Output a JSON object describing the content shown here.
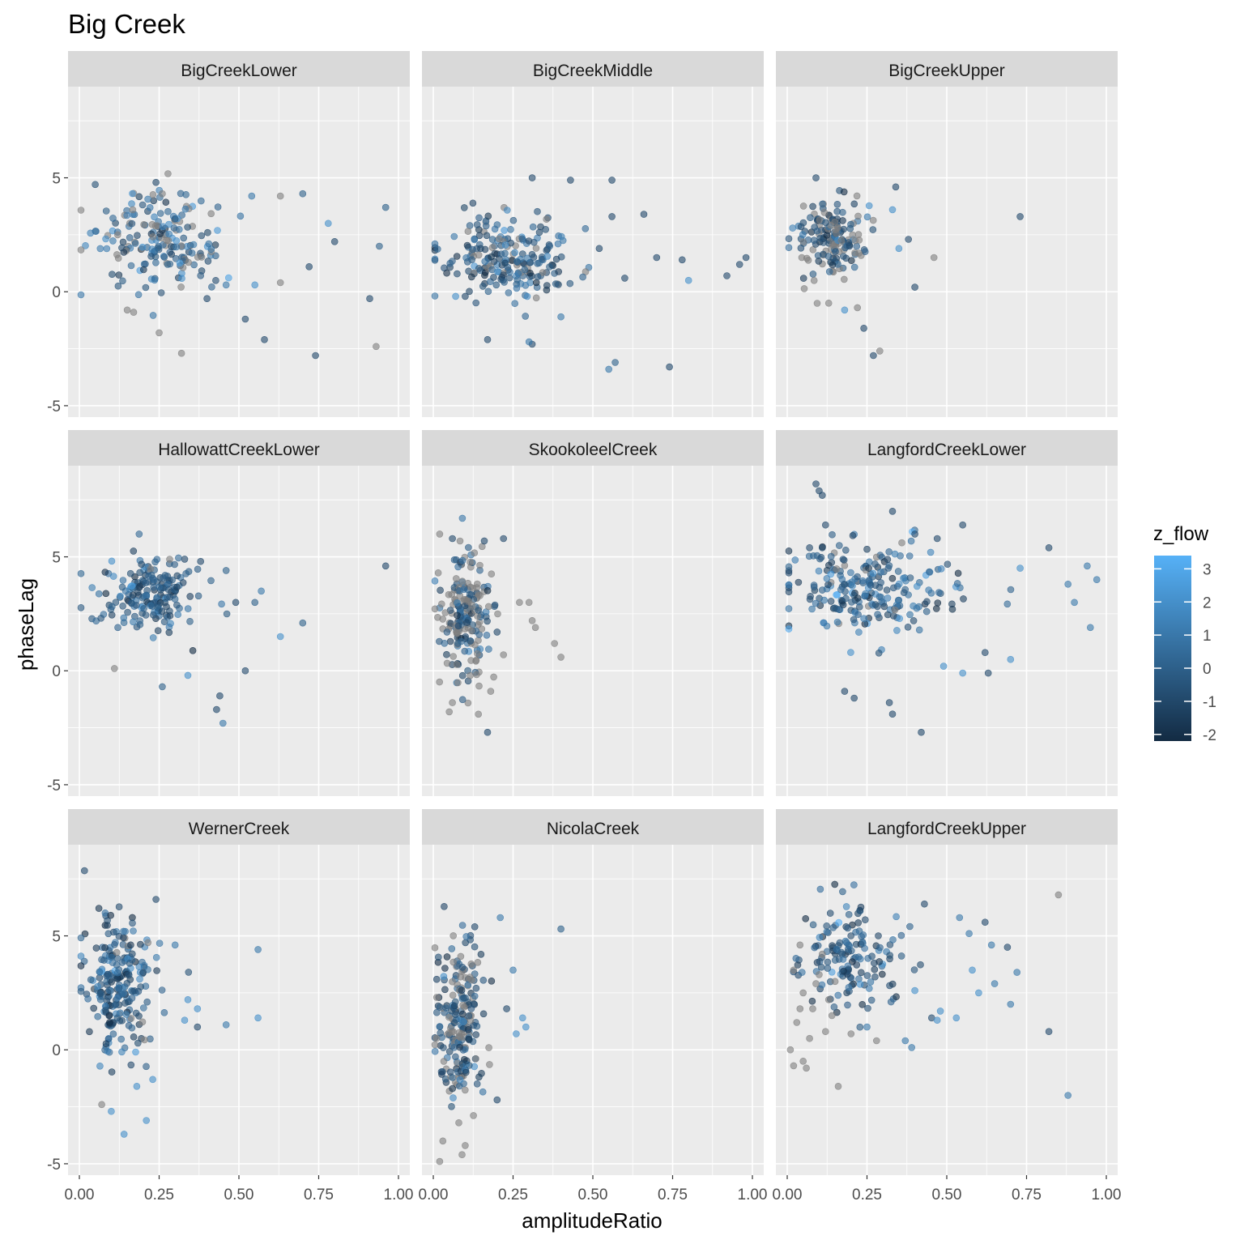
{
  "chart_data": {
    "type": "scatter",
    "title": "Big Creek",
    "xlabel": "amplitudeRatio",
    "ylabel": "phaseLag",
    "xlim": [
      0.0,
      1.0
    ],
    "ylim": [
      -5.5,
      9.0
    ],
    "x_ticks": [
      0,
      0.25,
      0.5,
      0.75,
      1
    ],
    "x_tick_labels": [
      "0.00",
      "0.25",
      "0.50",
      "0.75",
      "1.00"
    ],
    "y_ticks": [
      -5,
      0,
      5
    ],
    "y_tick_labels": [
      "-5",
      "0",
      "5"
    ],
    "grid": true,
    "legend": {
      "title": "z_flow",
      "placement": "right",
      "ticks": [
        3,
        2,
        1,
        0,
        -1,
        -2
      ],
      "tick_labels": [
        "3",
        "2",
        "1",
        "0",
        "-1",
        "-2"
      ],
      "range": [
        -2.2,
        3.4
      ],
      "low_color": "#132B43",
      "high_color": "#56B1F7",
      "na_color": "#7F7F7F"
    },
    "colors": {
      "panel_bg": "#EBEBEB",
      "strip_bg": "#D9D9D9",
      "grid": "#FFFFFF",
      "text": "#1A1A1A",
      "tick_text": "#4D4D4D"
    },
    "panels": [
      {
        "name": "BigCreekLower",
        "cloud": {
          "cx": 0.26,
          "cy": 2.3,
          "sx": 0.09,
          "sy": 1.0,
          "n": 190,
          "zmean": 0.3,
          "zsd": 1.1,
          "na": 0.22
        },
        "points": [
          [
            0.24,
            4.8,
            -1
          ],
          [
            0.32,
            -2.7,
            null
          ],
          [
            0.74,
            -2.8,
            -1
          ],
          [
            0.93,
            -2.4,
            null
          ],
          [
            0.91,
            -0.3,
            -1
          ],
          [
            0.94,
            2.0,
            0
          ],
          [
            0.96,
            3.7,
            0
          ],
          [
            0.7,
            4.3,
            0
          ],
          [
            0.63,
            4.2,
            null
          ],
          [
            0.54,
            4.2,
            1
          ],
          [
            0.8,
            2.2,
            -1
          ],
          [
            0.78,
            3.0,
            2
          ],
          [
            0.58,
            -2.1,
            -1
          ],
          [
            0.26,
            4.3,
            null
          ],
          [
            0.15,
            -0.8,
            null
          ],
          [
            0.17,
            -0.9,
            null
          ],
          [
            0.4,
            -0.3,
            -1
          ],
          [
            0.46,
            0.3,
            1
          ],
          [
            0.55,
            0.3,
            2
          ],
          [
            0.72,
            1.1,
            -1
          ],
          [
            0.12,
            2.5,
            null
          ],
          [
            0.63,
            0.4,
            null
          ],
          [
            0.25,
            -1.8,
            null
          ],
          [
            0.52,
            -1.2,
            -1
          ]
        ]
      },
      {
        "name": "BigCreekMiddle",
        "cloud": {
          "cx": 0.22,
          "cy": 1.4,
          "sx": 0.09,
          "sy": 0.9,
          "n": 210,
          "zmean": -0.2,
          "zsd": 1.1,
          "na": 0.12
        },
        "points": [
          [
            0.31,
            5.0,
            -1
          ],
          [
            0.56,
            4.9,
            -1
          ],
          [
            0.43,
            4.9,
            -1
          ],
          [
            0.55,
            -3.4,
            1
          ],
          [
            0.57,
            -3.1,
            0
          ],
          [
            0.74,
            -3.3,
            -1
          ],
          [
            0.17,
            -2.1,
            -1
          ],
          [
            0.31,
            -2.3,
            -1
          ],
          [
            0.3,
            -2.2,
            1
          ],
          [
            0.98,
            1.5,
            -1
          ],
          [
            0.96,
            1.2,
            -1
          ],
          [
            0.92,
            0.7,
            -1
          ],
          [
            0.8,
            0.5,
            2
          ],
          [
            0.78,
            1.4,
            -1
          ],
          [
            0.66,
            3.4,
            -1
          ],
          [
            0.56,
            3.3,
            -1
          ],
          [
            0.7,
            1.5,
            -1
          ],
          [
            0.6,
            0.6,
            -1
          ],
          [
            0.07,
            -0.2,
            2
          ],
          [
            0.1,
            -0.2,
            -1
          ],
          [
            0.4,
            -1.1,
            1
          ],
          [
            0.52,
            1.9,
            -1
          ]
        ]
      },
      {
        "name": "BigCreekUpper",
        "cloud": {
          "cx": 0.14,
          "cy": 2.4,
          "sx": 0.05,
          "sy": 0.9,
          "n": 160,
          "zmean": -0.4,
          "zsd": 1.0,
          "na": 0.3
        },
        "points": [
          [
            0.09,
            5.0,
            -1
          ],
          [
            0.73,
            3.3,
            -1
          ],
          [
            0.46,
            1.5,
            null
          ],
          [
            0.34,
            4.6,
            -1
          ],
          [
            0.33,
            3.6,
            2
          ],
          [
            0.27,
            -2.8,
            -1
          ],
          [
            0.29,
            -2.6,
            null
          ],
          [
            0.24,
            -1.6,
            -1
          ],
          [
            0.4,
            0.2,
            -1
          ],
          [
            0.38,
            2.3,
            -1
          ],
          [
            0.35,
            1.9,
            2
          ],
          [
            0.13,
            -0.5,
            null
          ],
          [
            0.18,
            -0.8,
            2
          ],
          [
            0.22,
            -0.7,
            null
          ]
        ]
      },
      {
        "name": "HallowattCreekLower",
        "cloud": {
          "cx": 0.22,
          "cy": 3.4,
          "sx": 0.07,
          "sy": 0.8,
          "n": 180,
          "zmean": -0.2,
          "zsd": 1.0,
          "na": 0.02
        },
        "points": [
          [
            0.96,
            4.6,
            -1
          ],
          [
            0.7,
            2.1,
            0
          ],
          [
            0.63,
            1.5,
            2
          ],
          [
            0.52,
            0.0,
            -1
          ],
          [
            0.45,
            -2.3,
            1
          ],
          [
            0.43,
            -1.7,
            -1
          ],
          [
            0.44,
            -1.1,
            -1
          ],
          [
            0.11,
            0.1,
            null
          ],
          [
            0.26,
            -0.7,
            0
          ],
          [
            0.55,
            3.0,
            0
          ],
          [
            0.57,
            3.5,
            1
          ],
          [
            0.33,
            4.9,
            -1
          ],
          [
            0.38,
            4.8,
            -1
          ],
          [
            0.46,
            4.4,
            0
          ],
          [
            0.49,
            3.0,
            -1
          ],
          [
            0.34,
            -0.2,
            2
          ]
        ]
      },
      {
        "name": "SkookoleelCreek",
        "cloud": {
          "cx": 0.1,
          "cy": 2.3,
          "sx": 0.035,
          "sy": 1.4,
          "n": 200,
          "zmean": -0.5,
          "zsd": 0.9,
          "na": 0.45
        },
        "points": [
          [
            0.02,
            6.0,
            null
          ],
          [
            0.06,
            5.8,
            -1
          ],
          [
            0.22,
            5.8,
            -1
          ],
          [
            0.16,
            5.7,
            -1
          ],
          [
            0.38,
            1.2,
            null
          ],
          [
            0.4,
            0.6,
            null
          ],
          [
            0.3,
            3.0,
            null
          ],
          [
            0.31,
            2.2,
            null
          ],
          [
            0.32,
            1.9,
            null
          ],
          [
            0.27,
            3.0,
            null
          ],
          [
            0.17,
            -2.7,
            -1
          ],
          [
            0.05,
            -1.8,
            null
          ],
          [
            0.06,
            -1.4,
            null
          ],
          [
            0.18,
            -0.9,
            null
          ],
          [
            0.22,
            0.7,
            null
          ],
          [
            0.2,
            1.7,
            -1
          ]
        ]
      },
      {
        "name": "LangfordCreekLower",
        "cloud": {
          "cx": 0.25,
          "cy": 3.6,
          "sx": 0.12,
          "sy": 1.0,
          "n": 230,
          "zmean": 0.0,
          "zsd": 1.2,
          "na": 0.04
        },
        "points": [
          [
            0.09,
            8.2,
            -1
          ],
          [
            0.1,
            7.9,
            -1
          ],
          [
            0.11,
            7.7,
            -1
          ],
          [
            0.12,
            6.4,
            -1
          ],
          [
            0.33,
            7.0,
            -1
          ],
          [
            0.55,
            6.4,
            -1
          ],
          [
            0.4,
            6.0,
            -1
          ],
          [
            0.47,
            5.8,
            -1
          ],
          [
            0.18,
            -0.9,
            -1
          ],
          [
            0.21,
            -1.2,
            -1
          ],
          [
            0.32,
            -1.4,
            -1
          ],
          [
            0.33,
            -1.9,
            -1
          ],
          [
            0.42,
            -2.7,
            -1
          ],
          [
            0.94,
            4.6,
            1
          ],
          [
            0.97,
            4.0,
            1
          ],
          [
            0.95,
            1.9,
            1
          ],
          [
            0.88,
            3.8,
            1
          ],
          [
            0.9,
            3.0,
            1
          ],
          [
            0.82,
            5.4,
            -1
          ],
          [
            0.73,
            4.5,
            2
          ],
          [
            0.62,
            0.8,
            -1
          ],
          [
            0.63,
            -0.1,
            -1
          ],
          [
            0.49,
            0.2,
            2
          ],
          [
            0.55,
            -0.1,
            2
          ],
          [
            0.7,
            0.5,
            2
          ],
          [
            0.07,
            5.4,
            -1
          ],
          [
            0.11,
            5.4,
            -1
          ]
        ]
      },
      {
        "name": "WernerCreek",
        "cloud": {
          "cx": 0.12,
          "cy": 2.9,
          "sx": 0.05,
          "sy": 1.5,
          "n": 230,
          "zmean": 0.0,
          "zsd": 1.2,
          "na": 0.04
        },
        "points": [
          [
            0.24,
            6.6,
            -1
          ],
          [
            0.56,
            4.4,
            1
          ],
          [
            0.56,
            1.4,
            2
          ],
          [
            0.46,
            1.1,
            1
          ],
          [
            0.37,
            1.8,
            2
          ],
          [
            0.37,
            1.0,
            -1
          ],
          [
            0.3,
            4.6,
            1
          ],
          [
            0.14,
            -3.7,
            2
          ],
          [
            0.21,
            -3.1,
            2
          ],
          [
            0.1,
            -2.7,
            2
          ],
          [
            0.07,
            -2.4,
            null
          ],
          [
            0.18,
            -1.6,
            2
          ],
          [
            0.23,
            -1.3,
            2
          ],
          [
            0.34,
            2.2,
            2
          ],
          [
            0.33,
            1.3,
            2
          ]
        ]
      },
      {
        "name": "NicolaCreek",
        "cloud": {
          "cx": 0.08,
          "cy": 1.4,
          "sx": 0.035,
          "sy": 1.8,
          "n": 220,
          "zmean": -0.3,
          "zsd": 1.0,
          "na": 0.3
        },
        "points": [
          [
            0.4,
            5.3,
            0
          ],
          [
            0.21,
            5.8,
            1
          ],
          [
            0.13,
            5.4,
            -1
          ],
          [
            0.02,
            -4.9,
            null
          ],
          [
            0.03,
            -4.0,
            null
          ],
          [
            0.09,
            -4.6,
            null
          ],
          [
            0.1,
            -4.2,
            null
          ],
          [
            0.08,
            -3.2,
            null
          ],
          [
            0.26,
            0.7,
            2
          ],
          [
            0.29,
            1.0,
            2
          ],
          [
            0.25,
            3.5,
            1
          ],
          [
            0.23,
            1.8,
            -1
          ],
          [
            0.2,
            -2.2,
            -1
          ],
          [
            0.28,
            1.4,
            2
          ]
        ]
      },
      {
        "name": "LangfordCreekUpper",
        "cloud": {
          "cx": 0.2,
          "cy": 4.2,
          "sx": 0.08,
          "sy": 1.1,
          "n": 150,
          "zmean": -0.4,
          "zsd": 1.1,
          "na": 0.0
        },
        "points": [
          [
            0.85,
            6.8,
            null
          ],
          [
            0.88,
            -2.0,
            1
          ],
          [
            0.82,
            0.8,
            -1
          ],
          [
            0.7,
            2.0,
            1
          ],
          [
            0.72,
            3.4,
            1
          ],
          [
            0.69,
            4.5,
            -1
          ],
          [
            0.64,
            4.6,
            1
          ],
          [
            0.62,
            5.6,
            -1
          ],
          [
            0.54,
            5.8,
            1
          ],
          [
            0.43,
            6.4,
            -1
          ],
          [
            0.16,
            -1.6,
            null
          ],
          [
            0.02,
            -0.7,
            null
          ],
          [
            0.05,
            -0.5,
            null
          ],
          [
            0.06,
            -0.8,
            null
          ],
          [
            0.01,
            0.0,
            null
          ],
          [
            0.03,
            1.2,
            null
          ],
          [
            0.04,
            1.8,
            null
          ],
          [
            0.05,
            2.5,
            null
          ],
          [
            0.02,
            3.5,
            null
          ],
          [
            0.04,
            4.6,
            null
          ],
          [
            0.07,
            0.5,
            null
          ],
          [
            0.08,
            1.8,
            null
          ],
          [
            0.09,
            2.9,
            null
          ],
          [
            0.1,
            3.3,
            null
          ],
          [
            0.11,
            4.2,
            null
          ],
          [
            0.12,
            0.8,
            null
          ],
          [
            0.13,
            2.2,
            null
          ],
          [
            0.14,
            1.5,
            null
          ],
          [
            0.15,
            3.0,
            null
          ],
          [
            0.2,
            0.7,
            null
          ],
          [
            0.28,
            0.4,
            null
          ],
          [
            0.25,
            1.0,
            1
          ],
          [
            0.37,
            0.4,
            1
          ],
          [
            0.39,
            0.1,
            1
          ],
          [
            0.48,
            1.7,
            2
          ],
          [
            0.53,
            1.4,
            2
          ],
          [
            0.47,
            1.3,
            2
          ],
          [
            0.4,
            2.6,
            2
          ],
          [
            0.58,
            3.5,
            2
          ],
          [
            0.6,
            2.5,
            2
          ],
          [
            0.65,
            2.9,
            1
          ],
          [
            0.57,
            5.1,
            1
          ]
        ]
      }
    ]
  }
}
